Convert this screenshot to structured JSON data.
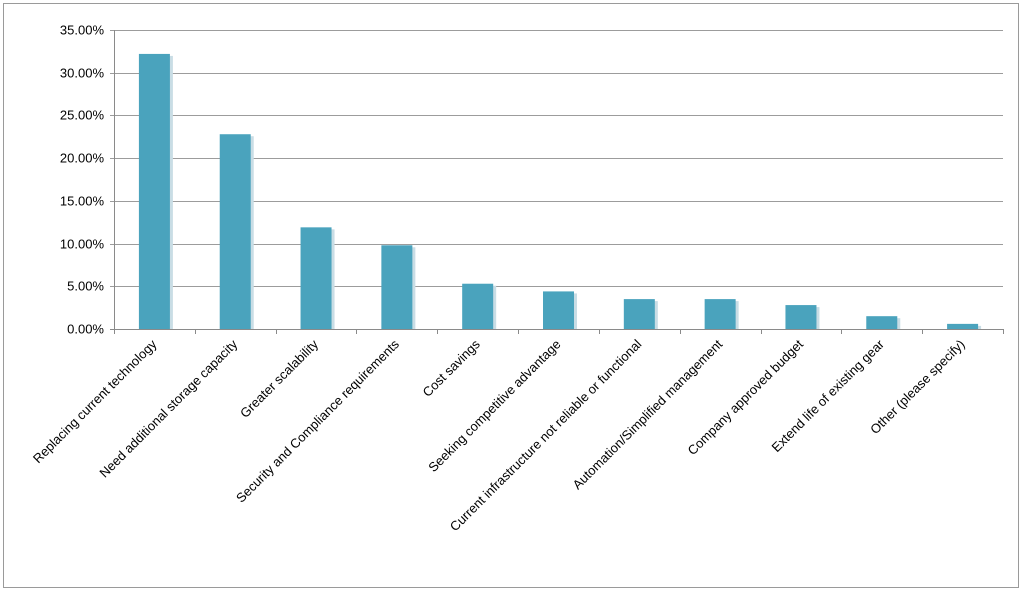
{
  "chart_data": {
    "type": "bar",
    "title": "",
    "xlabel": "",
    "ylabel": "",
    "categories": [
      "Replacing current technology",
      "Need additional storage capacity",
      "Greater scalability",
      "Security and Compliance requirements",
      "Cost savings",
      "Seeking competitive advantage",
      "Current infrastructure not reliable or functional",
      "Automation/Simplified management",
      "Company approved budget",
      "Extend life of existing gear",
      "Other (please specify)"
    ],
    "values": [
      32.2,
      22.8,
      11.9,
      9.8,
      5.3,
      4.4,
      3.5,
      3.5,
      2.8,
      1.5,
      0.6
    ],
    "ylim": [
      0,
      35
    ],
    "yticks": [
      "0.00%",
      "5.00%",
      "10.00%",
      "15.00%",
      "20.00%",
      "25.00%",
      "30.00%",
      "35.00%"
    ],
    "grid": true,
    "legend": "none",
    "bar_color": "#4aa3bd"
  }
}
